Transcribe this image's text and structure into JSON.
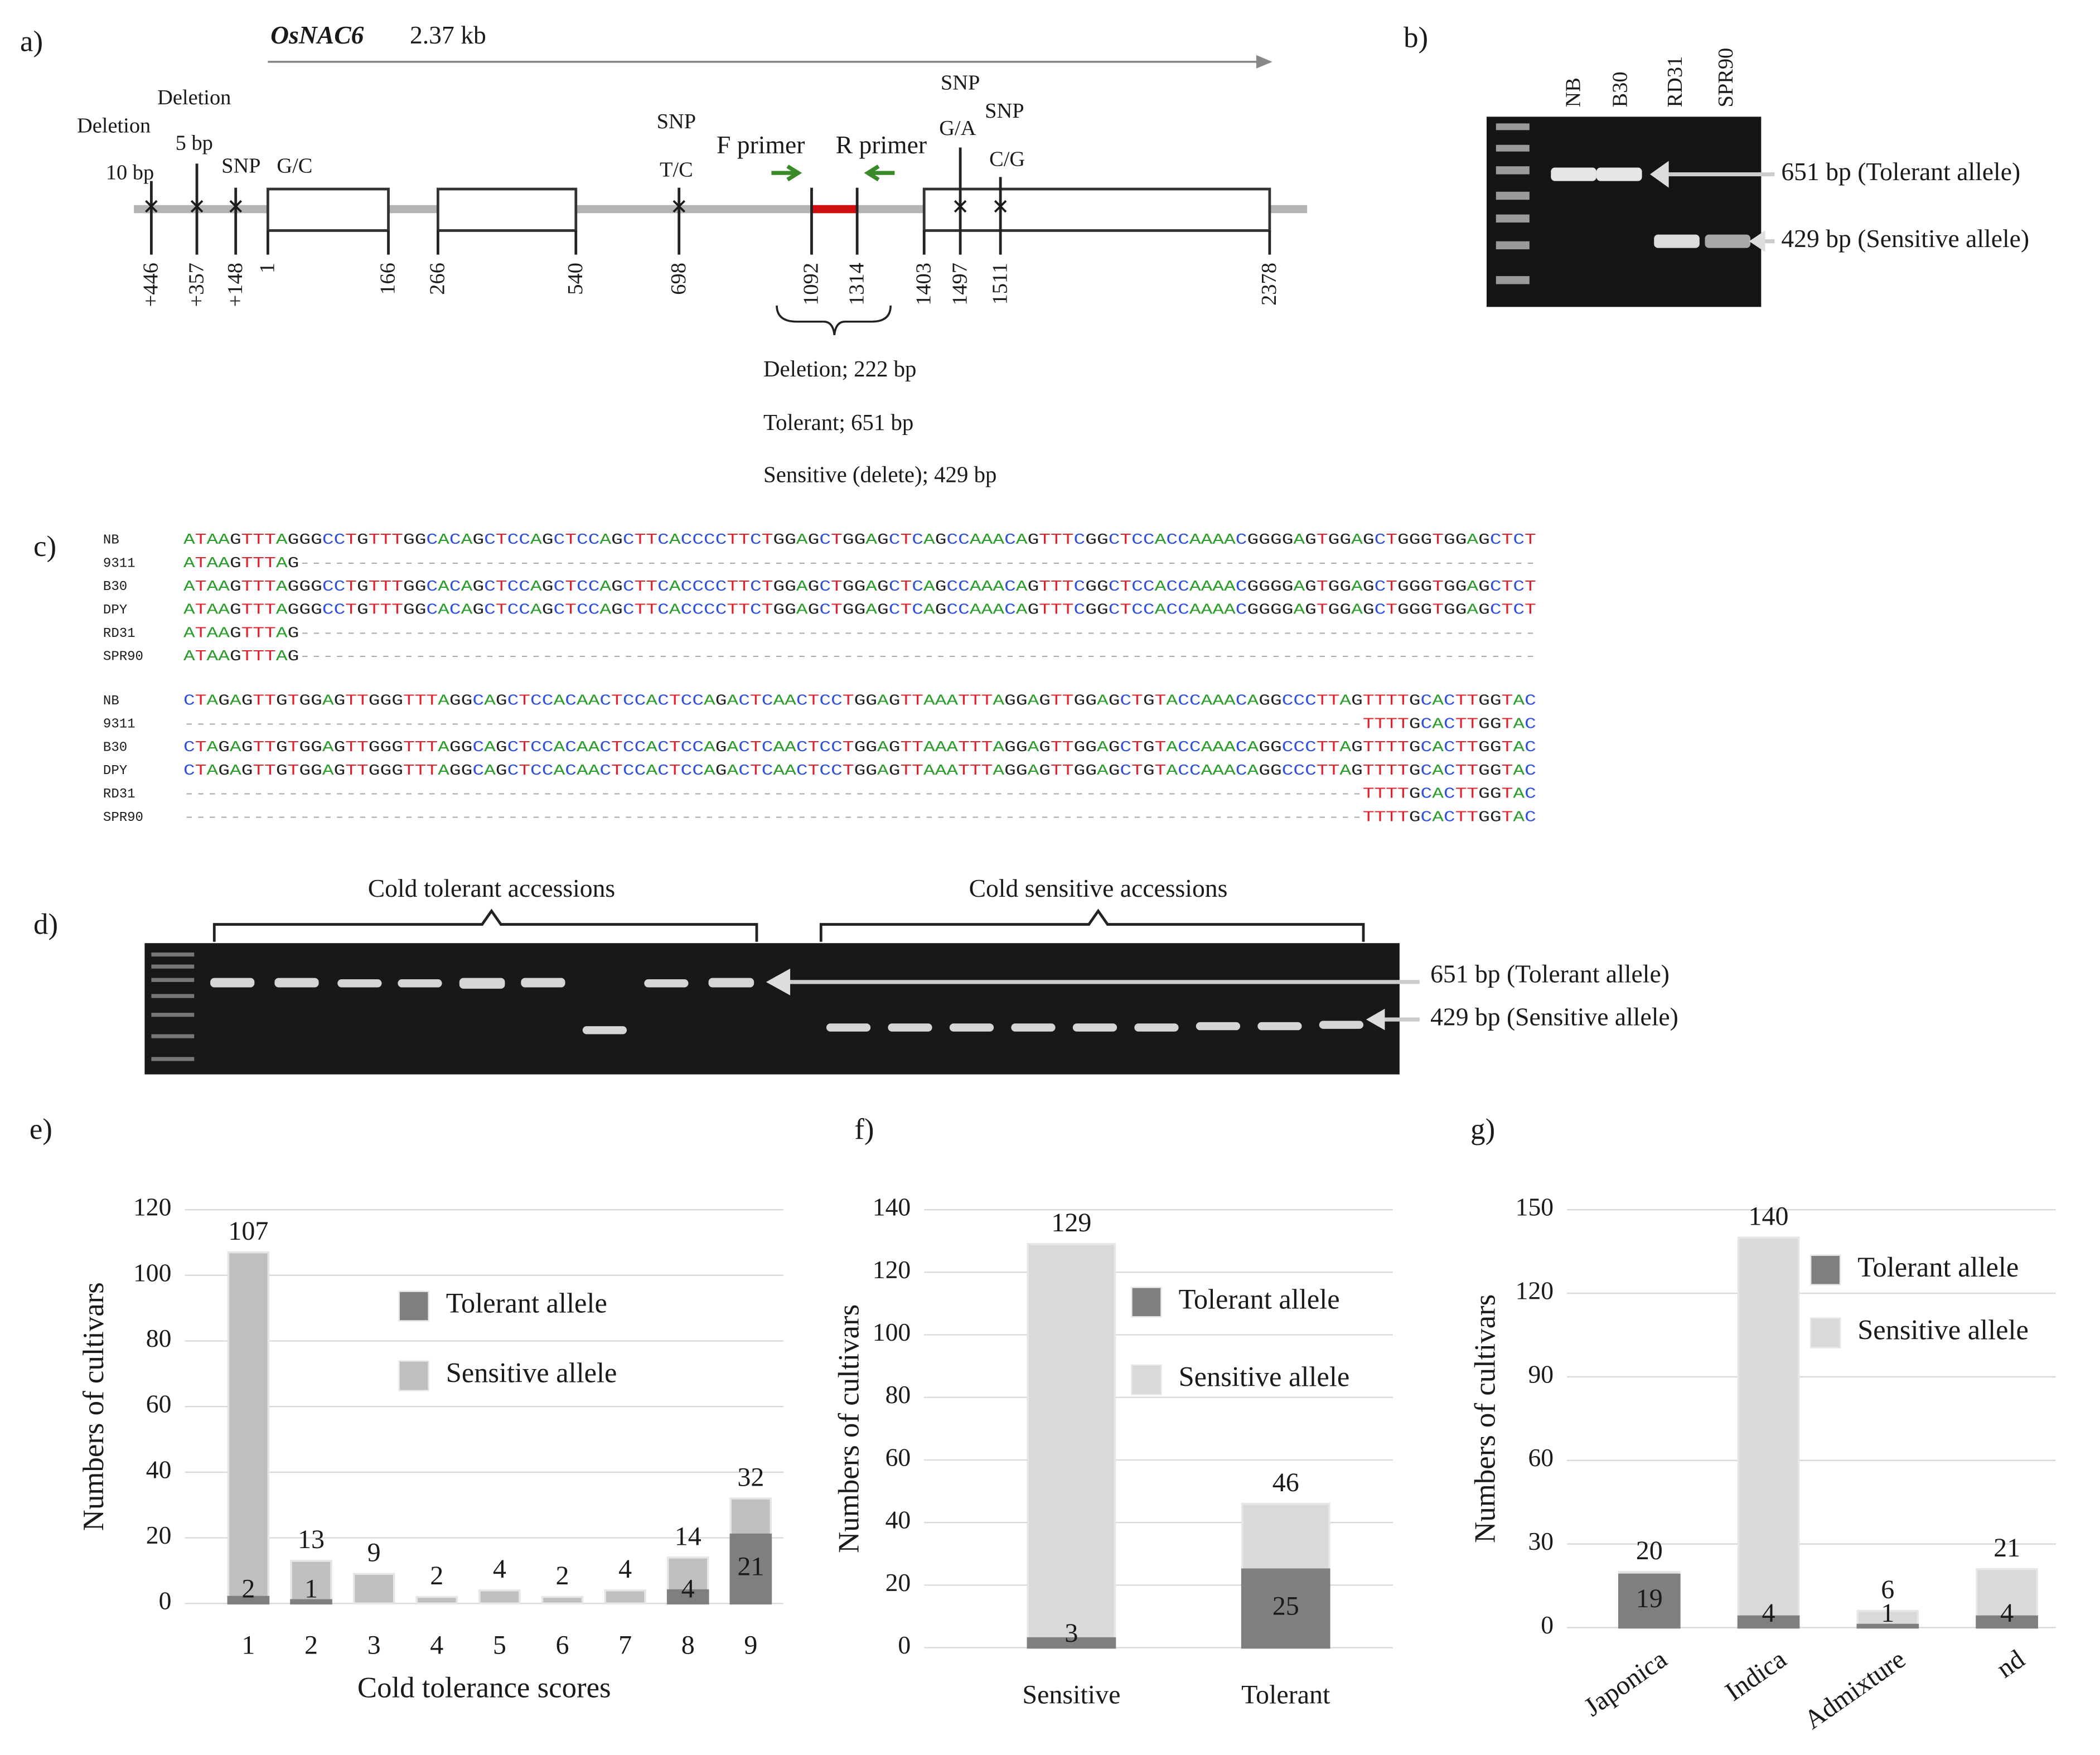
{
  "panel_labels": [
    "a)",
    "b)",
    "c)",
    "d)",
    "e)",
    "f)",
    "g)"
  ],
  "gene": {
    "name": "OsNAC6",
    "size": "2.37 kb",
    "features": [
      "Deletion",
      "10 bp",
      "Deletion",
      "5 bp",
      "SNP",
      "G/C",
      "SNP",
      "T/C",
      "F primer",
      "R primer",
      "SNP",
      "G/A",
      "SNP",
      "C/G"
    ],
    "positions": [
      "+446",
      "+357",
      "+148",
      "1",
      "166",
      "266",
      "540",
      "698",
      "1092",
      "1314",
      "1403",
      "1497",
      "1511",
      "2378"
    ],
    "notes": [
      "Deletion; 222 bp",
      "Tolerant; 651 bp",
      "Sensitive (delete); 429 bp"
    ]
  },
  "gel_b": {
    "lanes": [
      "NB",
      "B30",
      "RD31",
      "SPR90"
    ],
    "tolerant_label": "651 bp (Tolerant allele)",
    "sensitive_label": "429 bp (Sensitive allele)"
  },
  "alignment": [
    [
      {
        "name": "NB",
        "seq": "ATAAGTTTAGGGCCTGTTTGGCACAGCTCCAGCTCCAGCTTCACCCCTTCTGGAGCTGGAGCTCAGCCAAACAGTTTCGGCTCCACCAAAACGGGGAGTGGAGCTGGGTGGAGCTCT"
      },
      {
        "name": "9311",
        "seq": "ATAAGTTTAG-----------------------------------------------------------------------------------------------------------"
      },
      {
        "name": "B30",
        "seq": "ATAAGTTTAGGGCCTGTTTGGCACAGCTCCAGCTCCAGCTTCACCCCTTCTGGAGCTGGAGCTCAGCCAAACAGTTTCGGCTCCACCAAAACGGGGAGTGGAGCTGGGTGGAGCTCT"
      },
      {
        "name": "DPY",
        "seq": "ATAAGTTTAGGGCCTGTTTGGCACAGCTCCAGCTCCAGCTTCACCCCTTCTGGAGCTGGAGCTCAGCCAAACAGTTTCGGCTCCACCAAAACGGGGAGTGGAGCTGGGTGGAGCTCT"
      },
      {
        "name": "RD31",
        "seq": "ATAAGTTTAG-----------------------------------------------------------------------------------------------------------"
      },
      {
        "name": "SPR90",
        "seq": "ATAAGTTTAG-----------------------------------------------------------------------------------------------------------"
      }
    ],
    [
      {
        "name": "NB",
        "seq": "CTAGAGTTGTGGAGTTGGGTTTAGGCAGCTCCACAACTCCACTCCAGACTCAACTCCTGGAGTTAAATTTAGGAGTTGGAGCTGTACCAAACAGGCCCTTAGTTTTGCACTTGGTAC"
      },
      {
        "name": "9311",
        "seq": "------------------------------------------------------------------------------------------------------TTTTGCACTTGGTAC"
      },
      {
        "name": "B30",
        "seq": "CTAGAGTTGTGGAGTTGGGTTTAGGCAGCTCCACAACTCCACTCCAGACTCAACTCCTGGAGTTAAATTTAGGAGTTGGAGCTGTACCAAACAGGCCCTTAGTTTTGCACTTGGTAC"
      },
      {
        "name": "DPY",
        "seq": "CTAGAGTTGTGGAGTTGGGTTTAGGCAGCTCCACAACTCCACTCCAGACTCAACTCCTGGAGTTAAATTTAGGAGTTGGAGCTGTACCAAACAGGCCCTTAGTTTTGCACTTGGTAC"
      },
      {
        "name": "RD31",
        "seq": "------------------------------------------------------------------------------------------------------TTTTGCACTTGGTAC"
      },
      {
        "name": "SPR90",
        "seq": "------------------------------------------------------------------------------------------------------TTTTGCACTTGGTAC"
      }
    ]
  ],
  "gel_d": {
    "groups": [
      "Cold tolerant accessions",
      "Cold sensitive accessions"
    ],
    "tolerant_label": "651 bp (Tolerant allele)",
    "sensitive_label": "429 bp (Sensitive allele)"
  },
  "chart_data": [
    {
      "type": "bar",
      "y_label": "Numbers of cultivars",
      "x_label": "Cold tolerance scores",
      "categories": [
        "1",
        "2",
        "3",
        "4",
        "5",
        "6",
        "7",
        "8",
        "9"
      ],
      "series": [
        {
          "name": "Tolerant allele",
          "color": "#7f7f7f",
          "values": [
            2,
            1,
            null,
            null,
            null,
            null,
            null,
            4,
            21
          ]
        },
        {
          "name": "Sensitive allele",
          "color": "#bfbfbf",
          "values": [
            107,
            13,
            9,
            2,
            4,
            2,
            4,
            14,
            32
          ]
        }
      ],
      "ylim": [
        0,
        120
      ],
      "yticks": [
        0,
        20,
        40,
        60,
        80,
        100,
        120
      ],
      "grid": true
    },
    {
      "type": "bar",
      "y_label": "Numbers of cultivars",
      "categories": [
        "Sensitive",
        "Tolerant"
      ],
      "series": [
        {
          "name": "Tolerant allele",
          "color": "#7f7f7f",
          "values": [
            3,
            25
          ]
        },
        {
          "name": "Sensitive allele",
          "color": "#d9d9d9",
          "values": [
            129,
            46
          ]
        }
      ],
      "ylim": [
        0,
        140
      ],
      "yticks": [
        0,
        20,
        40,
        60,
        80,
        100,
        120,
        140
      ],
      "grid": true
    },
    {
      "type": "bar",
      "y_label": "Numbers of cultivars",
      "categories": [
        "Japonica",
        "Indica",
        "Admixture",
        "nd"
      ],
      "series": [
        {
          "name": "Tolerant allele",
          "color": "#7f7f7f",
          "values": [
            19,
            4,
            1,
            4
          ]
        },
        {
          "name": "Sensitive allele",
          "color": "#d9d9d9",
          "values": [
            20,
            140,
            6,
            21
          ]
        }
      ],
      "ylim": [
        0,
        150
      ],
      "yticks": [
        0,
        30,
        60,
        90,
        120,
        150
      ],
      "grid": true
    }
  ]
}
